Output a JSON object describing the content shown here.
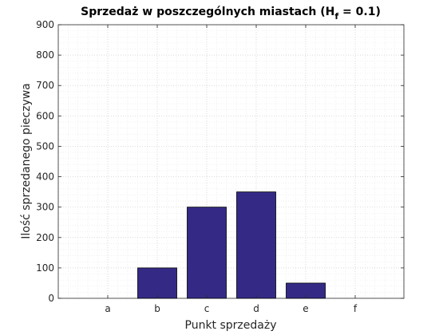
{
  "chart_data": {
    "type": "bar",
    "title_main": "Sprzedaż w poszczególnych miastach (H",
    "title_sub": "f",
    "title_tail": " = 0.1)",
    "xlabel": "Punkt sprzedaży",
    "ylabel": "Ilość sprzedanego pieczywa",
    "categories": [
      "a",
      "b",
      "c",
      "d",
      "e",
      "f"
    ],
    "values": [
      0,
      100,
      300,
      350,
      50,
      0
    ],
    "ylim": [
      0,
      900
    ],
    "yticks": [
      "0",
      "100",
      "200",
      "300",
      "400",
      "500",
      "600",
      "700",
      "800",
      "900"
    ],
    "grid": true,
    "minor_grid": true,
    "colors": {
      "bar_fill": "#342a86",
      "bar_edge": "#000000",
      "grid": "#d9d9d9",
      "axis": "#262626"
    }
  }
}
